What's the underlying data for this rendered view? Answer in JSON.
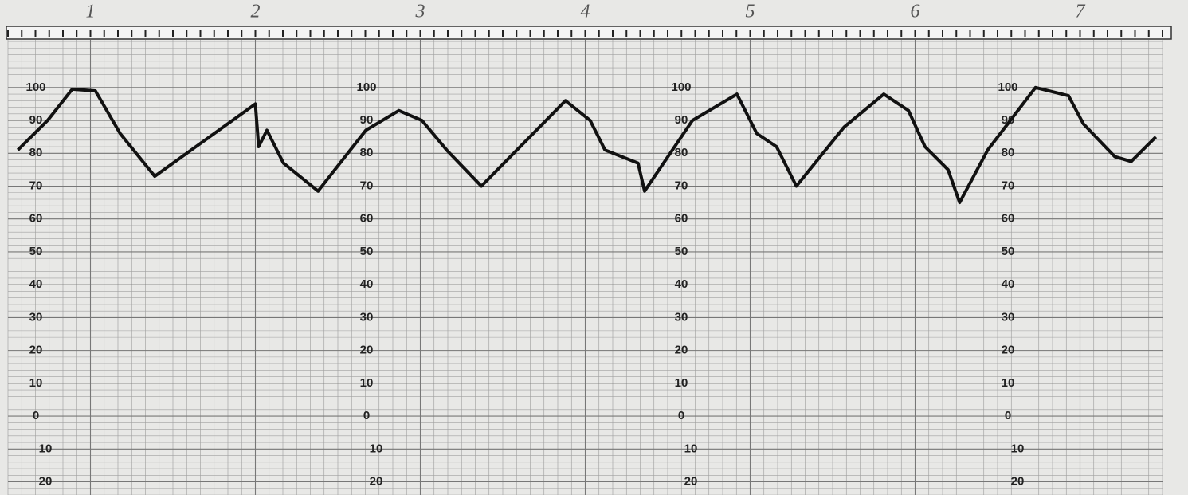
{
  "chart_data": {
    "type": "line",
    "x": [
      0.06,
      0.24,
      0.39,
      0.53,
      0.68,
      0.89,
      1.5,
      1.52,
      1.57,
      1.67,
      1.88,
      2.17,
      2.37,
      2.51,
      2.66,
      2.87,
      3.38,
      3.53,
      3.62,
      3.82,
      3.86,
      4.15,
      4.42,
      4.54,
      4.66,
      4.78,
      5.07,
      5.31,
      5.46,
      5.56,
      5.7,
      5.77,
      5.94,
      6.23,
      6.43,
      6.52,
      6.71,
      6.81,
      6.96
    ],
    "values": [
      81,
      90,
      99.5,
      99,
      86,
      73,
      95,
      82,
      87,
      77,
      68.5,
      87,
      93,
      90,
      81,
      70,
      96,
      90,
      81,
      77,
      68.5,
      90,
      98,
      86,
      82,
      70,
      88,
      98,
      93,
      82,
      75,
      65,
      81,
      100,
      97.5,
      89,
      79,
      77.5,
      85
    ],
    "color": "#111111",
    "xlim": [
      0,
      7
    ],
    "xticks": [
      {
        "value": 0.5,
        "label": "1"
      },
      {
        "value": 1.5,
        "label": "2"
      },
      {
        "value": 2.5,
        "label": "3"
      },
      {
        "value": 3.5,
        "label": "4"
      },
      {
        "value": 4.5,
        "label": "5"
      },
      {
        "value": 5.5,
        "label": "6"
      },
      {
        "value": 6.5,
        "label": "7"
      }
    ],
    "ylim": [
      -24,
      115
    ],
    "yticks": [
      {
        "value": -20,
        "label": "20"
      },
      {
        "value": -10,
        "label": "10"
      },
      0,
      10,
      20,
      30,
      40,
      50,
      60,
      70,
      80,
      90,
      100
    ],
    "grid": true
  }
}
